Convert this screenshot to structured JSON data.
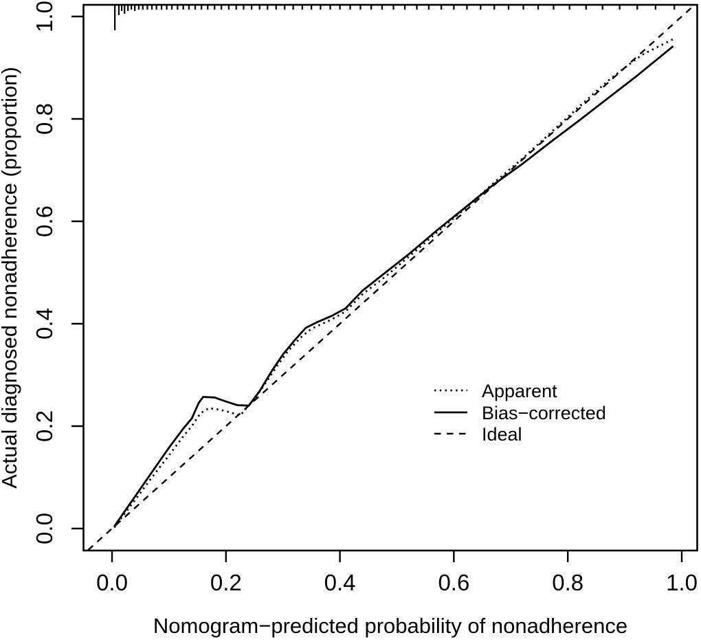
{
  "chart_data": {
    "type": "line",
    "title": "",
    "xlabel": "Nomogram−predicted probability of nonadherence",
    "ylabel": "Actual diagnosed nonadherence (proportion)",
    "xlim": [
      -0.05,
      1.03
    ],
    "ylim": [
      -0.04,
      1.02
    ],
    "x_ticks": [
      "0.0",
      "0.2",
      "0.4",
      "0.6",
      "0.8",
      "1.0"
    ],
    "y_ticks": [
      "0.0",
      "0.2",
      "0.4",
      "0.6",
      "0.8",
      "1.0"
    ],
    "grid": false,
    "legend_position": "right-middle",
    "line_color": "#000000",
    "background": "#ffffff",
    "series": [
      {
        "name": "Apparent",
        "style": "dotted",
        "points": [
          [
            0.004,
            0.002
          ],
          [
            0.02,
            0.026
          ],
          [
            0.04,
            0.055
          ],
          [
            0.07,
            0.1
          ],
          [
            0.1,
            0.143
          ],
          [
            0.125,
            0.18
          ],
          [
            0.14,
            0.2
          ],
          [
            0.155,
            0.225
          ],
          [
            0.17,
            0.235
          ],
          [
            0.19,
            0.232
          ],
          [
            0.21,
            0.226
          ],
          [
            0.225,
            0.221
          ],
          [
            0.25,
            0.253
          ],
          [
            0.27,
            0.285
          ],
          [
            0.29,
            0.318
          ],
          [
            0.31,
            0.348
          ],
          [
            0.33,
            0.372
          ],
          [
            0.35,
            0.39
          ],
          [
            0.385,
            0.408
          ],
          [
            0.41,
            0.424
          ],
          [
            0.44,
            0.458
          ],
          [
            0.48,
            0.492
          ],
          [
            0.52,
            0.53
          ],
          [
            0.57,
            0.578
          ],
          [
            0.62,
            0.625
          ],
          [
            0.67,
            0.675
          ],
          [
            0.72,
            0.722
          ],
          [
            0.77,
            0.773
          ],
          [
            0.82,
            0.824
          ],
          [
            0.87,
            0.874
          ],
          [
            0.9,
            0.9
          ],
          [
            0.93,
            0.925
          ],
          [
            0.985,
            0.956
          ]
        ]
      },
      {
        "name": "Bias−corrected",
        "style": "solid",
        "points": [
          [
            0.004,
            0.004
          ],
          [
            0.02,
            0.03
          ],
          [
            0.04,
            0.062
          ],
          [
            0.07,
            0.11
          ],
          [
            0.1,
            0.158
          ],
          [
            0.125,
            0.195
          ],
          [
            0.14,
            0.215
          ],
          [
            0.152,
            0.245
          ],
          [
            0.16,
            0.257
          ],
          [
            0.18,
            0.256
          ],
          [
            0.2,
            0.248
          ],
          [
            0.22,
            0.241
          ],
          [
            0.24,
            0.24
          ],
          [
            0.26,
            0.27
          ],
          [
            0.28,
            0.307
          ],
          [
            0.3,
            0.34
          ],
          [
            0.32,
            0.367
          ],
          [
            0.34,
            0.392
          ],
          [
            0.36,
            0.403
          ],
          [
            0.385,
            0.415
          ],
          [
            0.41,
            0.43
          ],
          [
            0.44,
            0.465
          ],
          [
            0.48,
            0.5
          ],
          [
            0.52,
            0.535
          ],
          [
            0.57,
            0.582
          ],
          [
            0.62,
            0.627
          ],
          [
            0.67,
            0.672
          ],
          [
            0.72,
            0.712
          ],
          [
            0.77,
            0.755
          ],
          [
            0.82,
            0.797
          ],
          [
            0.87,
            0.84
          ],
          [
            0.92,
            0.883
          ],
          [
            0.985,
            0.942
          ]
        ]
      },
      {
        "name": "Ideal",
        "style": "dashed",
        "points": [
          [
            -0.042,
            -0.042
          ],
          [
            1.022,
            1.022
          ]
        ]
      }
    ],
    "rug_ticks_top": [
      {
        "x": 0.005,
        "len": 36
      },
      {
        "x": 0.012,
        "len": 14
      },
      {
        "x": 0.017,
        "len": 8
      },
      {
        "x": 0.022,
        "len": 12
      },
      {
        "x": 0.028,
        "len": 8
      },
      {
        "x": 0.034,
        "len": 6
      },
      {
        "x": 0.04,
        "len": 8
      },
      {
        "x": 0.047,
        "len": 6
      },
      {
        "x": 0.054,
        "len": 6
      },
      {
        "x": 0.062,
        "len": 6
      },
      {
        "x": 0.07,
        "len": 6
      },
      {
        "x": 0.078,
        "len": 6
      },
      {
        "x": 0.087,
        "len": 6
      },
      {
        "x": 0.096,
        "len": 6
      },
      {
        "x": 0.105,
        "len": 6
      },
      {
        "x": 0.115,
        "len": 6
      },
      {
        "x": 0.125,
        "len": 6
      },
      {
        "x": 0.135,
        "len": 6
      },
      {
        "x": 0.146,
        "len": 6
      },
      {
        "x": 0.157,
        "len": 6
      },
      {
        "x": 0.168,
        "len": 6
      },
      {
        "x": 0.18,
        "len": 6
      },
      {
        "x": 0.192,
        "len": 6
      },
      {
        "x": 0.205,
        "len": 6
      },
      {
        "x": 0.218,
        "len": 6
      },
      {
        "x": 0.231,
        "len": 6
      },
      {
        "x": 0.245,
        "len": 6
      },
      {
        "x": 0.259,
        "len": 6
      },
      {
        "x": 0.273,
        "len": 6
      },
      {
        "x": 0.288,
        "len": 6
      },
      {
        "x": 0.303,
        "len": 6
      },
      {
        "x": 0.318,
        "len": 6
      },
      {
        "x": 0.334,
        "len": 6
      },
      {
        "x": 0.35,
        "len": 6
      },
      {
        "x": 0.366,
        "len": 6
      },
      {
        "x": 0.383,
        "len": 6
      },
      {
        "x": 0.4,
        "len": 6
      },
      {
        "x": 0.418,
        "len": 6
      },
      {
        "x": 0.436,
        "len": 6
      },
      {
        "x": 0.455,
        "len": 6
      },
      {
        "x": 0.474,
        "len": 6
      },
      {
        "x": 0.494,
        "len": 6
      },
      {
        "x": 0.514,
        "len": 6
      },
      {
        "x": 0.535,
        "len": 6
      },
      {
        "x": 0.556,
        "len": 6
      },
      {
        "x": 0.578,
        "len": 6
      },
      {
        "x": 0.6,
        "len": 6
      },
      {
        "x": 0.623,
        "len": 6
      },
      {
        "x": 0.647,
        "len": 6
      },
      {
        "x": 0.671,
        "len": 6
      },
      {
        "x": 0.696,
        "len": 6
      },
      {
        "x": 0.722,
        "len": 6
      },
      {
        "x": 0.748,
        "len": 6
      },
      {
        "x": 0.775,
        "len": 6
      },
      {
        "x": 0.803,
        "len": 6
      },
      {
        "x": 0.832,
        "len": 6
      },
      {
        "x": 0.861,
        "len": 6
      },
      {
        "x": 0.891,
        "len": 6
      },
      {
        "x": 0.922,
        "len": 6
      },
      {
        "x": 0.954,
        "len": 6
      },
      {
        "x": 0.987,
        "len": 6
      }
    ]
  }
}
